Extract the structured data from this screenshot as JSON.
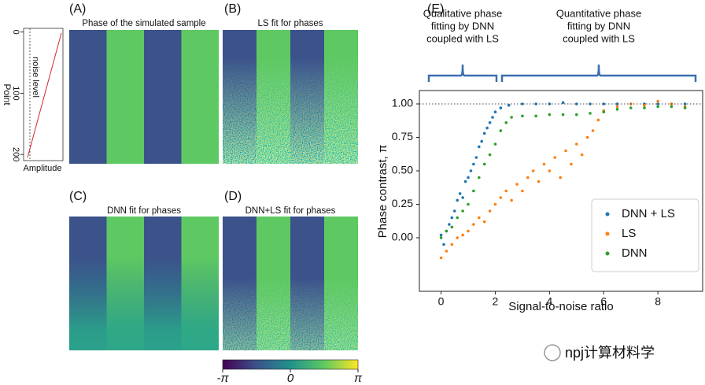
{
  "figure": {
    "panel_labels": [
      "(A)",
      "(B)",
      "(C)",
      "(D)",
      "(E)"
    ],
    "panel_titles": [
      "Phase of the simulated sample",
      "LS fit for phases",
      "DNN fit for phases",
      "DNN+LS fit for phases"
    ],
    "inset": {
      "ylabel": "Point",
      "xlabel": "Amplitude",
      "annotation": "noise level",
      "ylim": [
        -6,
        210
      ],
      "yticks": [
        0,
        100,
        200
      ]
    },
    "colorbar": {
      "lim": [
        -3.14159,
        3.14159
      ],
      "ticks": [
        {
          "value": -3.14159,
          "label": "-π"
        },
        0,
        {
          "value": 3.14159,
          "label": "π"
        }
      ]
    },
    "watermark": "npj计算材料学"
  },
  "chart_data": {
    "type": "scatter",
    "xlabel": "Signal-to-noise ratio",
    "ylabel": "Phase contrast, π",
    "annotations": [
      [
        "Qualitative phase",
        "fitting by DNN",
        "coupled with LS"
      ],
      [
        "Quantitative phase",
        "fitting by DNN",
        "coupled with LS"
      ]
    ],
    "xlim": [
      -0.8,
      9.65
    ],
    "ylim": [
      -0.4,
      1.1
    ],
    "xticks": [
      0,
      2,
      4,
      6,
      8
    ],
    "yticks": [
      {
        "value": 0,
        "label": "0.00"
      },
      {
        "value": 0.25,
        "label": "0.25"
      },
      {
        "value": 0.5,
        "label": "0.50"
      },
      {
        "value": 0.75,
        "label": "0.75"
      },
      {
        "value": 1,
        "label": "1.00"
      }
    ],
    "reference_line": 1,
    "legend": "lower right",
    "series": [
      {
        "name": "DNN + LS",
        "color": "#1f77b4",
        "x": [
          0,
          0.1,
          0.2,
          0.3,
          0.4,
          0.5,
          0.6,
          0.7,
          0.8,
          0.9,
          1.0,
          1.1,
          1.2,
          1.3,
          1.4,
          1.5,
          1.6,
          1.7,
          1.8,
          1.9,
          2.0,
          2.2,
          2.5,
          3,
          3.5,
          4,
          4.5,
          5,
          5.5,
          6,
          6.5,
          7,
          7.5,
          8,
          8.5,
          9
        ],
        "values": [
          0.02,
          -0.05,
          0.05,
          0.1,
          0.15,
          0.2,
          0.28,
          0.33,
          0.3,
          0.42,
          0.45,
          0.5,
          0.55,
          0.6,
          0.68,
          0.72,
          0.78,
          0.82,
          0.86,
          0.9,
          0.94,
          0.97,
          0.99,
          1.0,
          1.0,
          1.0,
          1.01,
          1.0,
          1.0,
          1.0,
          1.0,
          1.0,
          1.0,
          1.0,
          1.0,
          1.0
        ]
      },
      {
        "name": "LS",
        "color": "#ff7f0e",
        "x": [
          0,
          0.2,
          0.4,
          0.6,
          0.8,
          1.0,
          1.2,
          1.4,
          1.6,
          1.8,
          2.0,
          2.2,
          2.4,
          2.6,
          2.8,
          3.0,
          3.2,
          3.4,
          3.6,
          3.8,
          4.0,
          4.2,
          4.4,
          4.6,
          4.8,
          5.0,
          5.2,
          5.4,
          5.6,
          5.8,
          6.0,
          6.5,
          7.0,
          7.5,
          8.0,
          8.5,
          9.0
        ],
        "values": [
          -0.15,
          -0.1,
          -0.05,
          0.0,
          0.02,
          0.05,
          0.1,
          0.15,
          0.12,
          0.2,
          0.25,
          0.3,
          0.35,
          0.28,
          0.4,
          0.35,
          0.45,
          0.5,
          0.42,
          0.55,
          0.5,
          0.6,
          0.45,
          0.65,
          0.55,
          0.7,
          0.62,
          0.75,
          0.8,
          0.88,
          0.95,
          0.98,
          1.0,
          0.99,
          1.02,
          1.0,
          0.98
        ]
      },
      {
        "name": "DNN",
        "color": "#2ca02c",
        "x": [
          0,
          0.2,
          0.4,
          0.6,
          0.8,
          1.0,
          1.2,
          1.4,
          1.6,
          1.8,
          2.0,
          2.2,
          2.4,
          2.6,
          3,
          3.5,
          4,
          4.5,
          5,
          5.5,
          6,
          6.5,
          7,
          7.5,
          8,
          8.5,
          9
        ],
        "values": [
          0.0,
          0.05,
          0.08,
          0.15,
          0.2,
          0.25,
          0.35,
          0.45,
          0.55,
          0.62,
          0.7,
          0.8,
          0.86,
          0.9,
          0.91,
          0.91,
          0.92,
          0.92,
          0.92,
          0.93,
          0.94,
          0.96,
          0.97,
          0.97,
          0.98,
          0.98,
          0.97
        ]
      }
    ]
  }
}
